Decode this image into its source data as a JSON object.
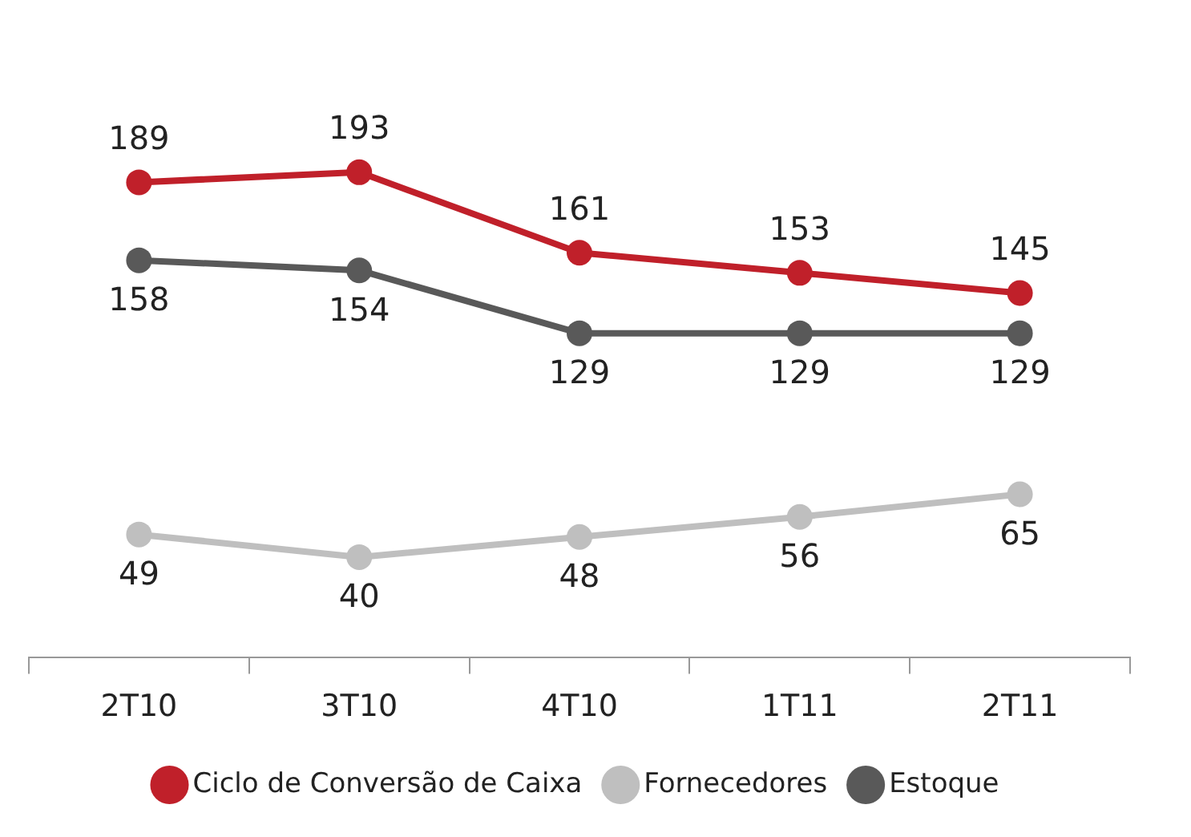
{
  "chart_data": {
    "type": "line",
    "categories": [
      "2T10",
      "3T10",
      "4T10",
      "1T11",
      "2T11"
    ],
    "series": [
      {
        "name": "Ciclo de Conversão de Caixa",
        "color": "#c0202a",
        "values": [
          189,
          193,
          161,
          153,
          145
        ]
      },
      {
        "name": "Fornecedores",
        "color": "#bfbfbf",
        "values": [
          49,
          40,
          48,
          56,
          65
        ]
      },
      {
        "name": "Estoque",
        "color": "#595959",
        "values": [
          158,
          154,
          129,
          129,
          129
        ]
      }
    ],
    "data_labels": true,
    "grid": false,
    "legend": "bottom",
    "marker": "circle",
    "line_style": "solid"
  }
}
